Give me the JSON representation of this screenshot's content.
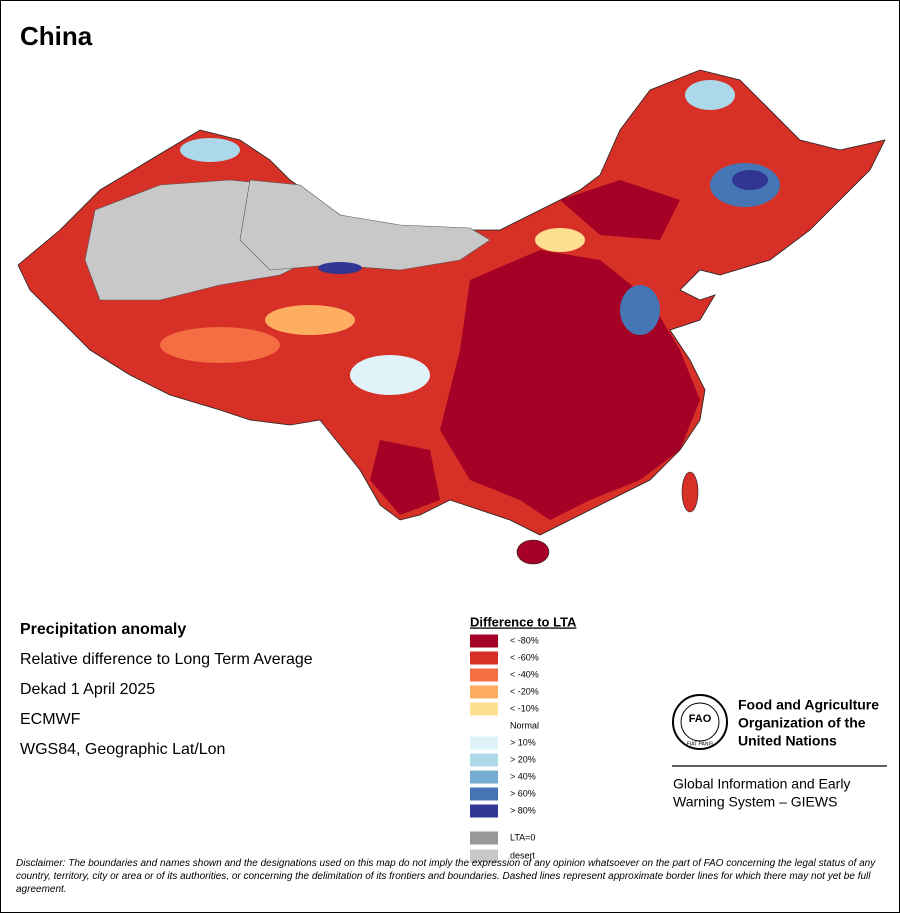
{
  "header": {
    "title": "China"
  },
  "map_info": {
    "title": "Precipitation anomaly",
    "lines": [
      "Relative difference to Long Term Average",
      "Dekad 1 April 2025",
      "ECMWF",
      "WGS84, Geographic Lat/Lon"
    ]
  },
  "legend": {
    "title": "Difference to LTA",
    "items": [
      {
        "label": "< -80%",
        "color": "#a50026"
      },
      {
        "label": "< -60%",
        "color": "#d73027"
      },
      {
        "label": "< -40%",
        "color": "#f46d43"
      },
      {
        "label": "< -20%",
        "color": "#fdae61"
      },
      {
        "label": "< -10%",
        "color": "#fee090"
      },
      {
        "label": "Normal"
      },
      {
        "label": "> 10%",
        "color": "#e0f3f8"
      },
      {
        "label": "> 20%",
        "color": "#abd9e9"
      },
      {
        "label": "> 40%",
        "color": "#74add1"
      },
      {
        "label": "> 60%",
        "color": "#4575b4"
      },
      {
        "label": "> 80%",
        "color": "#313695"
      }
    ],
    "extra_items": [
      {
        "label": "LTA=0",
        "color": "#999999"
      },
      {
        "label": "desert",
        "color": "#c8c8c8"
      }
    ]
  },
  "logo": {
    "emblem": "FAO",
    "motto": "FIAT PANIS",
    "organization": [
      "Food and Agriculture",
      "Organization of the",
      "United Nations"
    ],
    "system": [
      "Global Information and Early",
      "Warning System – GIEWS"
    ]
  },
  "disclaimer": "Disclaimer: The boundaries and names shown and the designations used on this map do not imply the expression of any opinion whatsoever on the part of FAO concerning the legal status of any country, territory, city or area or of its authorities, or concerning the delimitation of its frontiers and boundaries. Dashed lines represent approximate border lines for which there may not yet be full agreement."
}
